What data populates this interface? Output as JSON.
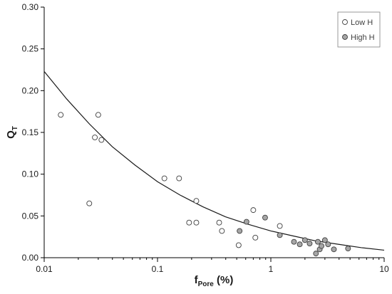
{
  "chart_data": {
    "type": "scatter",
    "title": "",
    "xlabel": {
      "main": "f",
      "sub": "Pore",
      "unit": " (%)"
    },
    "ylabel": {
      "main": "Q",
      "sub": "T"
    },
    "x_scale": "log",
    "xlim": [
      0.01,
      10
    ],
    "ylim": [
      0,
      0.3
    ],
    "x_ticks": [
      0.01,
      0.1,
      1,
      10
    ],
    "x_tick_labels": [
      "0.01",
      "0.1",
      "1",
      "10"
    ],
    "y_ticks": [
      0,
      0.05,
      0.1,
      0.15,
      0.2,
      0.25,
      0.3
    ],
    "y_tick_labels": [
      "0.00",
      "0.05",
      "0.10",
      "0.15",
      "0.20",
      "0.25",
      "0.30"
    ],
    "grid": false,
    "legend_position": "top-right",
    "series": [
      {
        "name": "Low H",
        "marker": "open-circle",
        "color": "#ffffff",
        "edge_color": "#404040",
        "points": [
          {
            "x": 0.014,
            "y": 0.171
          },
          {
            "x": 0.025,
            "y": 0.065
          },
          {
            "x": 0.028,
            "y": 0.144
          },
          {
            "x": 0.03,
            "y": 0.171
          },
          {
            "x": 0.032,
            "y": 0.141
          },
          {
            "x": 0.115,
            "y": 0.095
          },
          {
            "x": 0.155,
            "y": 0.095
          },
          {
            "x": 0.19,
            "y": 0.042
          },
          {
            "x": 0.22,
            "y": 0.042
          },
          {
            "x": 0.22,
            "y": 0.068
          },
          {
            "x": 0.35,
            "y": 0.042
          },
          {
            "x": 0.37,
            "y": 0.032
          },
          {
            "x": 0.52,
            "y": 0.015
          },
          {
            "x": 0.7,
            "y": 0.057
          },
          {
            "x": 0.73,
            "y": 0.024
          },
          {
            "x": 1.2,
            "y": 0.038
          }
        ]
      },
      {
        "name": "High H",
        "marker": "filled-circle",
        "color": "#a6a6a6",
        "edge_color": "#404040",
        "points": [
          {
            "x": 0.53,
            "y": 0.032
          },
          {
            "x": 0.61,
            "y": 0.043
          },
          {
            "x": 0.89,
            "y": 0.048
          },
          {
            "x": 1.2,
            "y": 0.027
          },
          {
            "x": 1.6,
            "y": 0.019
          },
          {
            "x": 1.8,
            "y": 0.016
          },
          {
            "x": 2.0,
            "y": 0.021
          },
          {
            "x": 2.2,
            "y": 0.017
          },
          {
            "x": 2.5,
            "y": 0.005
          },
          {
            "x": 2.6,
            "y": 0.019
          },
          {
            "x": 2.7,
            "y": 0.01
          },
          {
            "x": 2.8,
            "y": 0.014
          },
          {
            "x": 3.0,
            "y": 0.021
          },
          {
            "x": 3.2,
            "y": 0.016
          },
          {
            "x": 3.6,
            "y": 0.01
          },
          {
            "x": 4.8,
            "y": 0.011
          }
        ]
      }
    ],
    "fit_curve": {
      "points": [
        {
          "x": 0.01,
          "y": 0.223
        },
        {
          "x": 0.0158,
          "y": 0.19
        },
        {
          "x": 0.0251,
          "y": 0.16
        },
        {
          "x": 0.0398,
          "y": 0.133
        },
        {
          "x": 0.0631,
          "y": 0.111
        },
        {
          "x": 0.1,
          "y": 0.091
        },
        {
          "x": 0.158,
          "y": 0.075
        },
        {
          "x": 0.251,
          "y": 0.061
        },
        {
          "x": 0.398,
          "y": 0.049
        },
        {
          "x": 0.631,
          "y": 0.04
        },
        {
          "x": 1.0,
          "y": 0.032
        },
        {
          "x": 1.58,
          "y": 0.026
        },
        {
          "x": 2.51,
          "y": 0.02
        },
        {
          "x": 3.98,
          "y": 0.016
        },
        {
          "x": 6.31,
          "y": 0.012
        },
        {
          "x": 10.0,
          "y": 0.009
        }
      ]
    }
  }
}
